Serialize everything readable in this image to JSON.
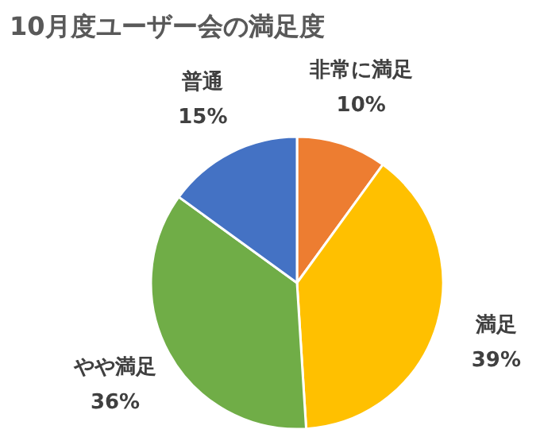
{
  "chart_data": {
    "type": "pie",
    "title": "10月度ユーザー会の満足度",
    "categories": [
      "非常に満足",
      "満足",
      "やや満足",
      "普通"
    ],
    "values": [
      10,
      39,
      36,
      15
    ],
    "value_labels": [
      "10%",
      "39%",
      "36%",
      "15%"
    ],
    "colors": [
      "#ed7d31",
      "#ffc000",
      "#70ad47",
      "#4472c4"
    ]
  }
}
